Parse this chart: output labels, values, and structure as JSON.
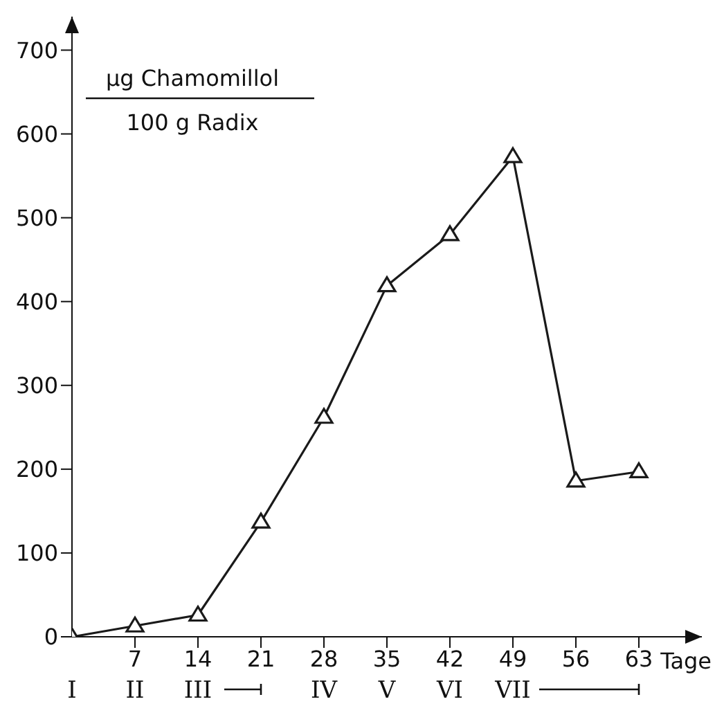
{
  "chart_data": {
    "type": "line",
    "ylabel": "µg Chamomillol",
    "xlabel": "Tage",
    "x": [
      0,
      7,
      14,
      21,
      28,
      35,
      42,
      49,
      56,
      63
    ],
    "series": [
      {
        "color": "#1a1a1a",
        "values": [
          0,
          13,
          26,
          137,
          262,
          419,
          480,
          573,
          186,
          197
        ]
      }
    ],
    "xlim": [
      0,
      70
    ],
    "ylim": [
      0,
      740
    ],
    "xticks": [
      7,
      14,
      21,
      28,
      35,
      42,
      49,
      56,
      63
    ],
    "yticks": [
      0,
      100,
      200,
      300,
      400,
      500,
      600,
      700
    ],
    "marker": "triangle",
    "line_style": "solid",
    "grid": false,
    "legend": false,
    "annotations": [
      "100 g Radix",
      "I",
      "II",
      "III",
      "IV",
      "V",
      "VI",
      "VII"
    ]
  }
}
